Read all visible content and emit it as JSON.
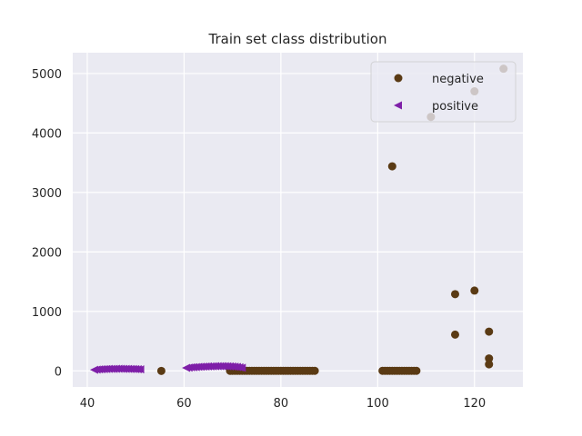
{
  "chart_data": {
    "type": "scatter",
    "title": "Train set class distribution",
    "xlabel": "",
    "ylabel": "",
    "xlim": [
      37,
      130
    ],
    "ylim": [
      -270,
      5350
    ],
    "x_ticks": [
      40,
      60,
      80,
      100,
      120
    ],
    "y_ticks": [
      0,
      1000,
      2000,
      3000,
      4000,
      5000
    ],
    "grid": true,
    "legend_position": "top-right",
    "series": [
      {
        "name": "negative",
        "marker": "circle",
        "color": "#5a3a14",
        "points": [
          [
            55.3,
            0
          ],
          [
            69.5,
            2
          ],
          [
            70.0,
            2
          ],
          [
            70.5,
            2
          ],
          [
            71.0,
            2
          ],
          [
            71.5,
            2
          ],
          [
            72.0,
            2
          ],
          [
            72.5,
            2
          ],
          [
            73.0,
            2
          ],
          [
            73.5,
            2
          ],
          [
            74.0,
            2
          ],
          [
            74.5,
            2
          ],
          [
            75.0,
            2
          ],
          [
            75.5,
            2
          ],
          [
            76.0,
            2
          ],
          [
            76.5,
            2
          ],
          [
            77.0,
            2
          ],
          [
            77.5,
            2
          ],
          [
            78.0,
            2
          ],
          [
            78.5,
            2
          ],
          [
            79.0,
            2
          ],
          [
            79.5,
            2
          ],
          [
            80.0,
            2
          ],
          [
            80.5,
            2
          ],
          [
            81.0,
            2
          ],
          [
            81.5,
            2
          ],
          [
            82.0,
            2
          ],
          [
            82.5,
            2
          ],
          [
            83.0,
            2
          ],
          [
            83.5,
            2
          ],
          [
            84.0,
            2
          ],
          [
            84.5,
            2
          ],
          [
            85.0,
            2
          ],
          [
            85.5,
            2
          ],
          [
            86.0,
            2
          ],
          [
            86.5,
            2
          ],
          [
            87.0,
            2
          ],
          [
            101.0,
            2
          ],
          [
            101.5,
            2
          ],
          [
            102.0,
            2
          ],
          [
            102.5,
            2
          ],
          [
            103.0,
            2
          ],
          [
            103.5,
            2
          ],
          [
            104.0,
            2
          ],
          [
            104.5,
            2
          ],
          [
            105.0,
            2
          ],
          [
            105.5,
            2
          ],
          [
            106.0,
            2
          ],
          [
            106.5,
            2
          ],
          [
            107.0,
            2
          ],
          [
            107.5,
            2
          ],
          [
            108.0,
            2
          ],
          [
            103.0,
            3440
          ],
          [
            111.0,
            4270
          ],
          [
            116.0,
            1290
          ],
          [
            116.0,
            610
          ],
          [
            120.0,
            1350
          ],
          [
            120.0,
            4700
          ],
          [
            123.0,
            660
          ],
          [
            123.0,
            210
          ],
          [
            123.0,
            110
          ],
          [
            126.0,
            5080
          ]
        ]
      },
      {
        "name": "positive",
        "marker": "triangle-left",
        "color": "#7e1fa8",
        "points": [
          [
            41.5,
            18
          ],
          [
            42.0,
            22
          ],
          [
            42.5,
            25
          ],
          [
            43.0,
            28
          ],
          [
            43.5,
            30
          ],
          [
            44.0,
            32
          ],
          [
            44.5,
            33
          ],
          [
            45.0,
            34
          ],
          [
            45.5,
            34
          ],
          [
            46.0,
            35
          ],
          [
            46.5,
            35
          ],
          [
            47.0,
            35
          ],
          [
            47.5,
            34
          ],
          [
            48.0,
            34
          ],
          [
            48.5,
            33
          ],
          [
            49.0,
            32
          ],
          [
            49.5,
            31
          ],
          [
            50.0,
            30
          ],
          [
            50.5,
            28
          ],
          [
            51.0,
            25
          ],
          [
            60.5,
            50
          ],
          [
            61.0,
            55
          ],
          [
            61.5,
            60
          ],
          [
            62.0,
            62
          ],
          [
            62.5,
            65
          ],
          [
            63.0,
            68
          ],
          [
            63.5,
            70
          ],
          [
            64.0,
            72
          ],
          [
            64.5,
            74
          ],
          [
            65.0,
            75
          ],
          [
            65.5,
            76
          ],
          [
            66.0,
            78
          ],
          [
            66.5,
            79
          ],
          [
            67.0,
            80
          ],
          [
            67.5,
            80
          ],
          [
            68.0,
            80
          ],
          [
            68.5,
            79
          ],
          [
            69.0,
            78
          ],
          [
            69.5,
            76
          ],
          [
            70.0,
            74
          ],
          [
            70.5,
            70
          ],
          [
            71.0,
            66
          ],
          [
            71.5,
            60
          ],
          [
            72.0,
            52
          ]
        ]
      }
    ]
  }
}
